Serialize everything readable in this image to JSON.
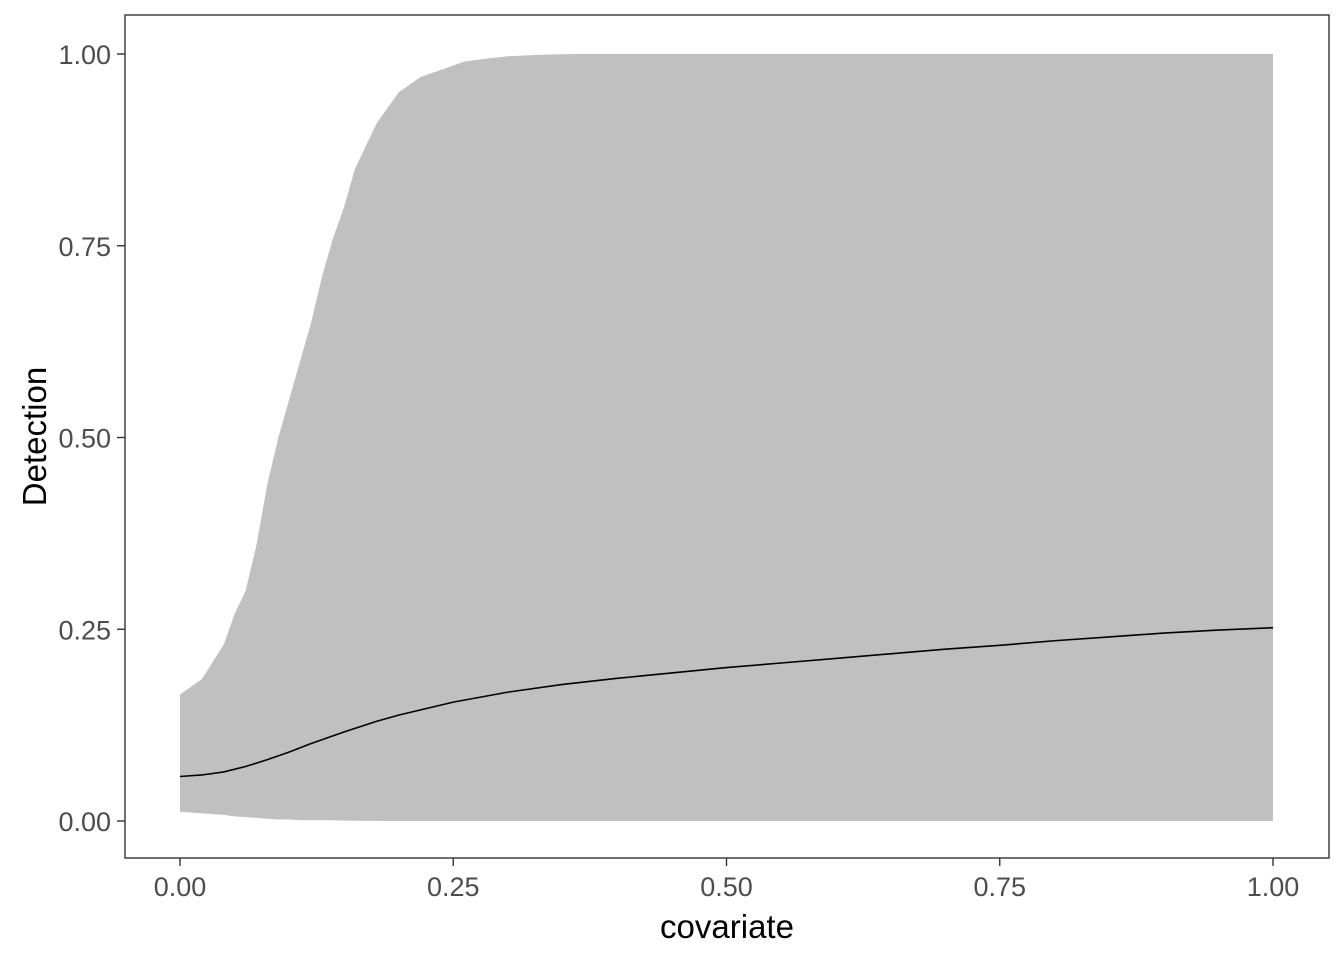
{
  "chart_data": {
    "type": "line",
    "xlabel": "covariate",
    "ylabel": "Detection",
    "xlim": [
      0,
      1
    ],
    "ylim": [
      0,
      1
    ],
    "x_ticks": [
      "0.00",
      "0.25",
      "0.50",
      "0.75",
      "1.00"
    ],
    "y_ticks": [
      "0.00",
      "0.25",
      "0.50",
      "0.75",
      "1.00"
    ],
    "grid": false,
    "legend": "none",
    "colors": {
      "ribbon": "#c0c0c0",
      "line": "#000000",
      "panel_border": "#333333",
      "tick_label": "#4d4d4d"
    },
    "series": [
      {
        "x": [
          0,
          0.02,
          0.04,
          0.06,
          0.08,
          0.1,
          0.12,
          0.15,
          0.18,
          0.2,
          0.25,
          0.3,
          0.35,
          0.4,
          0.45,
          0.5,
          0.55,
          0.6,
          0.65,
          0.7,
          0.75,
          0.8,
          0.85,
          0.9,
          0.95,
          1.0
        ],
        "y": [
          0.058,
          0.06,
          0.064,
          0.071,
          0.08,
          0.09,
          0.101,
          0.116,
          0.13,
          0.138,
          0.155,
          0.168,
          0.178,
          0.186,
          0.193,
          0.2,
          0.206,
          0.212,
          0.218,
          0.224,
          0.229,
          0.235,
          0.24,
          0.245,
          0.249,
          0.252
        ]
      }
    ],
    "band": {
      "x": [
        0,
        0.02,
        0.04,
        0.05,
        0.06,
        0.07,
        0.08,
        0.09,
        0.1,
        0.11,
        0.12,
        0.13,
        0.14,
        0.15,
        0.16,
        0.17,
        0.18,
        0.19,
        0.2,
        0.22,
        0.24,
        0.26,
        0.28,
        0.3,
        0.33,
        0.36,
        0.4,
        0.5,
        0.6,
        0.7,
        0.8,
        0.9,
        1.0
      ],
      "upper": [
        0.165,
        0.185,
        0.23,
        0.27,
        0.3,
        0.36,
        0.44,
        0.5,
        0.55,
        0.6,
        0.65,
        0.71,
        0.76,
        0.8,
        0.85,
        0.88,
        0.91,
        0.93,
        0.95,
        0.97,
        0.98,
        0.99,
        0.994,
        0.997,
        0.999,
        1.0,
        1.0,
        1.0,
        1.0,
        1.0,
        1.0,
        1.0,
        1.0
      ],
      "lower": [
        0.012,
        0.01,
        0.008,
        0.006,
        0.005,
        0.004,
        0.003,
        0.002,
        0.002,
        0.001,
        0.001,
        0.001,
        0.001,
        0.0005,
        0.0003,
        0.0002,
        0.0001,
        0,
        0,
        0,
        0,
        0,
        0,
        0,
        0,
        0,
        0,
        0,
        0,
        0,
        0,
        0,
        0
      ]
    }
  }
}
